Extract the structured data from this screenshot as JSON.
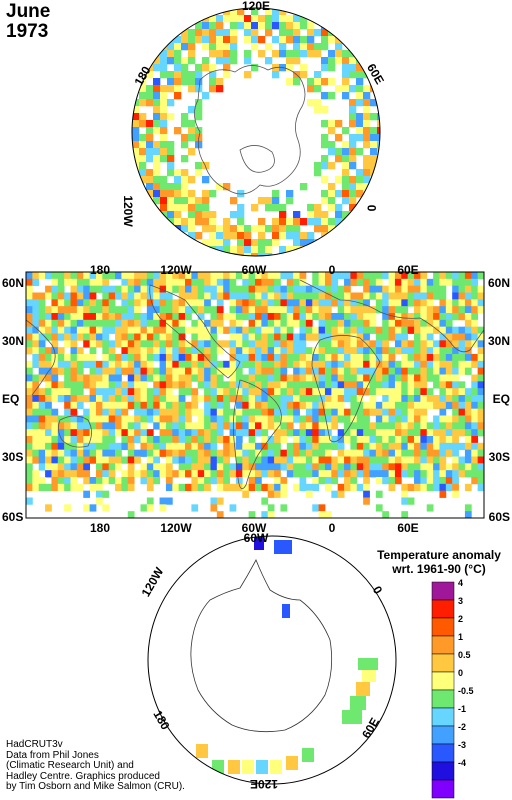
{
  "title": {
    "month": "June",
    "year": "1973"
  },
  "north_polar": {
    "labels": {
      "top": "120E",
      "upper_left": "180",
      "upper_right": "60E",
      "left": "120W",
      "right": "0"
    }
  },
  "world_map": {
    "top_labels": [
      "180",
      "120W",
      "60W",
      "0",
      "60E"
    ],
    "bottom_labels": [
      "180",
      "120W",
      "60W",
      "0",
      "60E"
    ],
    "lat_labels": [
      "60N",
      "30N",
      "EQ",
      "30S",
      "60S"
    ]
  },
  "south_polar": {
    "labels": {
      "top": "60W",
      "upper_left": "120W",
      "upper_right": "0",
      "lower_left": "180",
      "lower_right": "60E",
      "bottom": "120E"
    }
  },
  "legend": {
    "title_line1": "Temperature anomaly",
    "title_line2": "wrt. 1961-90  (°C)",
    "bins": [
      {
        "label": "4",
        "color": "#a0189a"
      },
      {
        "label": "3",
        "color": "#ff1e00"
      },
      {
        "label": "2",
        "color": "#ff5a00"
      },
      {
        "label": "1",
        "color": "#ff9a28"
      },
      {
        "label": "0.5",
        "color": "#ffc840"
      },
      {
        "label": "0",
        "color": "#ffff7a"
      },
      {
        "label": "-0.5",
        "color": "#6ee86e"
      },
      {
        "label": "-1",
        "color": "#66d6ff"
      },
      {
        "label": "-2",
        "color": "#42a0ff"
      },
      {
        "label": "-3",
        "color": "#2a58ff"
      },
      {
        "label": "-4",
        "color": "#2010e0"
      },
      {
        "label": "",
        "color": "#8000ff"
      }
    ]
  },
  "credits": [
    "HadCRUT3v",
    "Data from Phil Jones",
    "(Climatic Research Unit) and",
    "Hadley Centre.  Graphics produced",
    "by Tim Osborn and Mike Salmon (CRU)."
  ]
}
